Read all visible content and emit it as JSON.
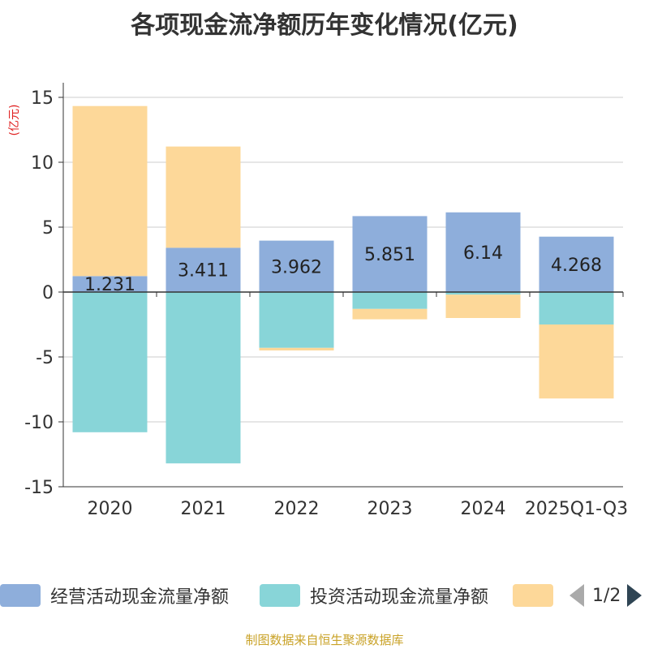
{
  "chart_data": {
    "type": "bar",
    "stacked": true,
    "title": "各项现金流净额历年变化情况(亿元)",
    "ylabel": "(亿元)",
    "xlabel": "",
    "ylim": [
      -15,
      15
    ],
    "yticks": [
      15,
      10,
      5,
      0,
      -5,
      -10,
      -15
    ],
    "categories": [
      "2020",
      "2021",
      "2022",
      "2023",
      "2024",
      "2025Q1-Q3"
    ],
    "series": [
      {
        "name": "经营活动现金流量净额",
        "color": "#8eaedb",
        "values": [
          1.231,
          3.411,
          3.962,
          5.851,
          6.14,
          4.268
        ],
        "show_labels": true
      },
      {
        "name": "投资活动现金流量净额",
        "color": "#88d5d8",
        "values": [
          -10.8,
          -13.2,
          -4.3,
          -1.3,
          -0.2,
          -2.5
        ]
      },
      {
        "name": "",
        "color": "#fdd899",
        "values": [
          13.1,
          7.8,
          -0.2,
          -0.8,
          -1.8,
          -5.7
        ]
      }
    ]
  },
  "legend": {
    "items": [
      {
        "label": "经营活动现金流量净额",
        "color": "#8eaedb"
      },
      {
        "label": "投资活动现金流量净额",
        "color": "#88d5d8"
      },
      {
        "label": "",
        "color": "#fdd899"
      }
    ],
    "pager": "1/2"
  },
  "footer": {
    "source": "制图数据来自恒生聚源数据库"
  }
}
